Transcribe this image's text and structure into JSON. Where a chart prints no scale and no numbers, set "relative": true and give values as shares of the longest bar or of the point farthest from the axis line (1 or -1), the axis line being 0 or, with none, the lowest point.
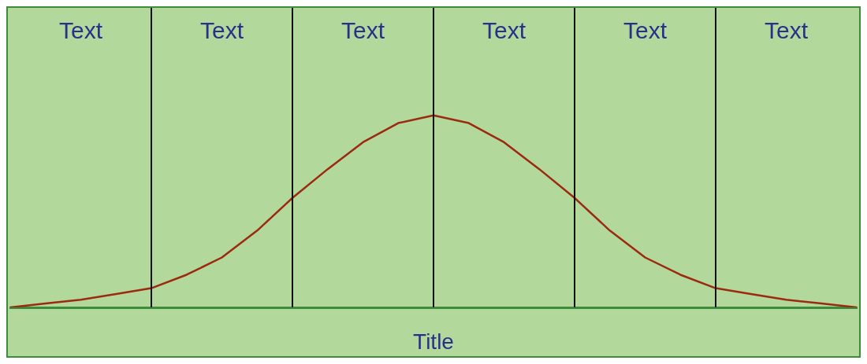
{
  "chart_data": {
    "type": "line",
    "relative": true,
    "xlabel": "Title",
    "categories": [
      null,
      null,
      null,
      null,
      null,
      null,
      null,
      null,
      null,
      null,
      null,
      null,
      null,
      null,
      null,
      null,
      null,
      null,
      null,
      null,
      null,
      null,
      null,
      null,
      null
    ],
    "annotations": [
      "Text",
      "Text",
      "Text",
      "Text",
      "Text",
      "Text"
    ],
    "grid": "x",
    "marker": "none",
    "line_style": "solid",
    "series": [
      {
        "color": "#9b2a10",
        "values": [
          0,
          0.02,
          0.04,
          0.07,
          0.1,
          0.17,
          0.26,
          0.4,
          0.57,
          0.72,
          0.86,
          0.96,
          1,
          0.96,
          0.86,
          0.72,
          0.57,
          0.4,
          0.26,
          0.17,
          0.1,
          0.07,
          0.04,
          0.02,
          0
        ]
      }
    ]
  }
}
